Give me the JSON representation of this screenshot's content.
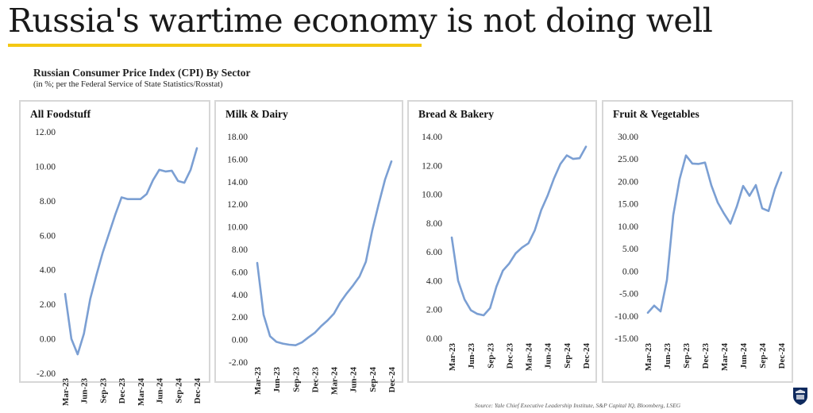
{
  "headline": "Russia's wartime economy is not doing well",
  "chart_title": "Russian Consumer Price Index (CPI) By Sector",
  "chart_subtitle": "(in %; per the Federal Service of State Statistics/Rosstat)",
  "source": "Source: Yale Chief Executive Leadership Institute, S&P Capital IQ, Bloomberg, LSEG",
  "colors": {
    "line": "#7b9fd3",
    "border": "#d7d7d7",
    "accent": "#f4c813"
  },
  "chart_data": [
    {
      "type": "line",
      "title": "All Foodstuff",
      "x": [
        "Mar-23",
        "Apr-23",
        "May-23",
        "Jun-23",
        "Jul-23",
        "Aug-23",
        "Sep-23",
        "Oct-23",
        "Nov-23",
        "Dec-23",
        "Jan-24",
        "Feb-24",
        "Mar-24",
        "Apr-24",
        "May-24",
        "Jun-24",
        "Jul-24",
        "Aug-24",
        "Sep-24",
        "Oct-24",
        "Nov-24",
        "Dec-24"
      ],
      "x_tick_labels": [
        "Mar-23",
        "Jun-23",
        "Sep-23",
        "Dec-23",
        "Mar-24",
        "Jun-24",
        "Sep-24",
        "Dec-24"
      ],
      "values": [
        2.6,
        0.0,
        -0.9,
        0.3,
        2.3,
        3.7,
        5.0,
        6.1,
        7.2,
        8.2,
        8.1,
        8.1,
        8.1,
        8.4,
        9.2,
        9.8,
        9.7,
        9.75,
        9.15,
        9.05,
        9.8,
        11.05
      ],
      "ylim": [
        -2.0,
        12.0
      ],
      "yticks": [
        "12.00",
        "10.00",
        "8.00",
        "6.00",
        "4.00",
        "2.00",
        "0.00",
        "-2.00"
      ]
    },
    {
      "type": "line",
      "title": "Milk & Dairy",
      "x": [
        "Mar-23",
        "Apr-23",
        "May-23",
        "Jun-23",
        "Jul-23",
        "Aug-23",
        "Sep-23",
        "Oct-23",
        "Nov-23",
        "Dec-23",
        "Jan-24",
        "Feb-24",
        "Mar-24",
        "Apr-24",
        "May-24",
        "Jun-24",
        "Jul-24",
        "Aug-24",
        "Sep-24",
        "Oct-24",
        "Nov-24",
        "Dec-24"
      ],
      "x_tick_labels": [
        "Mar-23",
        "Jun-23",
        "Sep-23",
        "Dec-23",
        "Mar-24",
        "Jun-24",
        "Sep-24",
        "Dec-24"
      ],
      "values": [
        6.8,
        2.2,
        0.3,
        -0.2,
        -0.35,
        -0.45,
        -0.5,
        -0.25,
        0.2,
        0.6,
        1.2,
        1.7,
        2.3,
        3.3,
        4.1,
        4.8,
        5.6,
        6.9,
        9.7,
        12.0,
        14.2,
        15.8
      ],
      "ylim": [
        -2.0,
        18.0
      ],
      "yticks": [
        "18.00",
        "16.00",
        "14.00",
        "12.00",
        "10.00",
        "8.00",
        "6.00",
        "4.00",
        "2.00",
        "0.00",
        "-2.00"
      ]
    },
    {
      "type": "line",
      "title": "Bread & Bakery",
      "x": [
        "Mar-23",
        "Apr-23",
        "May-23",
        "Jun-23",
        "Jul-23",
        "Aug-23",
        "Sep-23",
        "Oct-23",
        "Nov-23",
        "Dec-23",
        "Jan-24",
        "Feb-24",
        "Mar-24",
        "Apr-24",
        "May-24",
        "Jun-24",
        "Jul-24",
        "Aug-24",
        "Sep-24",
        "Oct-24",
        "Nov-24",
        "Dec-24"
      ],
      "x_tick_labels": [
        "Mar-23",
        "Jun-23",
        "Sep-23",
        "Dec-23",
        "Mar-24",
        "Jun-24",
        "Sep-24",
        "Dec-24"
      ],
      "values": [
        7.0,
        4.0,
        2.7,
        1.95,
        1.7,
        1.6,
        2.1,
        3.6,
        4.7,
        5.2,
        5.9,
        6.3,
        6.6,
        7.5,
        8.9,
        9.9,
        11.1,
        12.1,
        12.7,
        12.45,
        12.5,
        13.3
      ],
      "ylim": [
        0.0,
        14.0
      ],
      "yticks": [
        "14.00",
        "12.00",
        "10.00",
        "8.00",
        "6.00",
        "4.00",
        "2.00",
        "0.00"
      ]
    },
    {
      "type": "line",
      "title": "Fruit & Vegetables",
      "x": [
        "Mar-23",
        "Apr-23",
        "May-23",
        "Jun-23",
        "Jul-23",
        "Aug-23",
        "Sep-23",
        "Oct-23",
        "Nov-23",
        "Dec-23",
        "Jan-24",
        "Feb-24",
        "Mar-24",
        "Apr-24",
        "May-24",
        "Jun-24",
        "Jul-24",
        "Aug-24",
        "Sep-24",
        "Oct-24",
        "Nov-24",
        "Dec-24"
      ],
      "x_tick_labels": [
        "Mar-23",
        "Jun-23",
        "Sep-23",
        "Dec-23",
        "Mar-24",
        "Jun-24",
        "Sep-24",
        "Dec-24"
      ],
      "values": [
        -9.3,
        -7.7,
        -9.0,
        -2.0,
        12.5,
        20.5,
        25.8,
        24.0,
        23.9,
        24.2,
        19.1,
        15.3,
        12.8,
        10.6,
        14.4,
        19.0,
        16.8,
        19.2,
        14.0,
        13.4,
        18.3,
        22.0
      ],
      "ylim": [
        -15.0,
        30.0
      ],
      "yticks": [
        "30.00",
        "25.00",
        "20.00",
        "15.00",
        "10.00",
        "5.00",
        "0.00",
        "-5.00",
        "-10.00",
        "-15.00"
      ]
    }
  ]
}
